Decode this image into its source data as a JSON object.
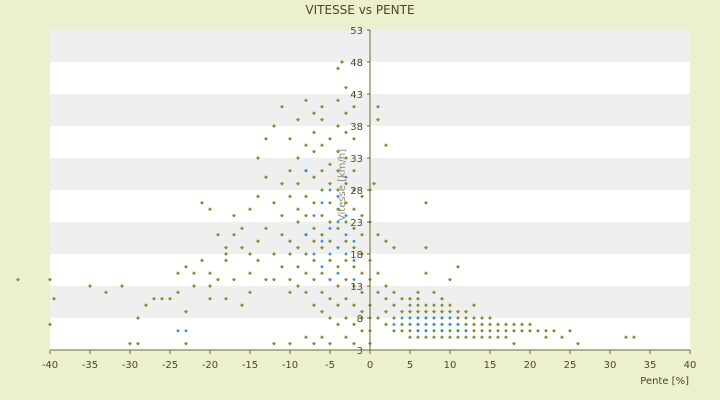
{
  "chart_data": {
    "type": "scatter",
    "title": "VITESSE vs PENTE",
    "xlabel": "Pente [%]",
    "ylabel": "Vitesse [km/h]",
    "xlim": [
      -40,
      40
    ],
    "ylim": [
      3,
      53
    ],
    "x_ticks": [
      "-40",
      "-35",
      "-30",
      "-25",
      "-20",
      "-15",
      "-10",
      "-5",
      "0",
      "5",
      "10",
      "15",
      "20",
      "25",
      "30",
      "35",
      "40"
    ],
    "y_ticks": [
      "3",
      "8",
      "13",
      "18",
      "23",
      "28",
      "33",
      "38",
      "43",
      "48",
      "53"
    ],
    "grid": "alternating horizontal bands",
    "colors": {
      "background": "#ecf0cf",
      "plot_band_light": "#ffffff",
      "plot_band_dark": "#efefef",
      "points_main": "#9a9a1a",
      "points_main_edge": "#4a5a10",
      "points_highlight": "#3a8fd8",
      "axis": "#6b6b2a"
    },
    "series": [
      {
        "color": "#8b9a1a",
        "points": [
          [
            -44,
            14
          ],
          [
            -40,
            14
          ],
          [
            -39.5,
            11
          ],
          [
            -40,
            7
          ],
          [
            -35,
            13
          ],
          [
            -33,
            12
          ],
          [
            -31,
            13
          ],
          [
            -30,
            4
          ],
          [
            -29,
            4
          ],
          [
            -29,
            8
          ],
          [
            -28,
            10
          ],
          [
            -27,
            11
          ],
          [
            -26,
            11
          ],
          [
            -25,
            11
          ],
          [
            -24,
            12
          ],
          [
            -24,
            15
          ],
          [
            -23,
            16
          ],
          [
            -23,
            9
          ],
          [
            -23,
            4
          ],
          [
            -22,
            13
          ],
          [
            -22,
            15
          ],
          [
            -21,
            17
          ],
          [
            -21,
            26
          ],
          [
            -20,
            15
          ],
          [
            -20,
            11
          ],
          [
            -20,
            13
          ],
          [
            -20,
            25
          ],
          [
            -19,
            21
          ],
          [
            -19,
            14
          ],
          [
            -18,
            17
          ],
          [
            -18,
            18
          ],
          [
            -18,
            19
          ],
          [
            -18,
            11
          ],
          [
            -17,
            14
          ],
          [
            -17,
            21
          ],
          [
            -17,
            24
          ],
          [
            -16,
            19
          ],
          [
            -16,
            22
          ],
          [
            -16,
            10
          ],
          [
            -15,
            18
          ],
          [
            -15,
            15
          ],
          [
            -15,
            12
          ],
          [
            -15,
            25
          ],
          [
            -14,
            17
          ],
          [
            -14,
            20
          ],
          [
            -14,
            27
          ],
          [
            -14,
            33
          ],
          [
            -13,
            14
          ],
          [
            -13,
            22
          ],
          [
            -13,
            36
          ],
          [
            -13,
            30
          ],
          [
            -12,
            18
          ],
          [
            -12,
            14
          ],
          [
            -12,
            26
          ],
          [
            -12,
            38
          ],
          [
            -12,
            4
          ],
          [
            -11,
            16
          ],
          [
            -11,
            21
          ],
          [
            -11,
            24
          ],
          [
            -11,
            29
          ],
          [
            -11,
            41
          ],
          [
            -10,
            14
          ],
          [
            -10,
            18
          ],
          [
            -10,
            20
          ],
          [
            -10,
            27
          ],
          [
            -10,
            31
          ],
          [
            -10,
            36
          ],
          [
            -10,
            12
          ],
          [
            -10,
            4
          ],
          [
            -9,
            13
          ],
          [
            -9,
            16
          ],
          [
            -9,
            19
          ],
          [
            -9,
            23
          ],
          [
            -9,
            25
          ],
          [
            -9,
            29
          ],
          [
            -9,
            33
          ],
          [
            -9,
            39
          ],
          [
            -8,
            12
          ],
          [
            -8,
            15
          ],
          [
            -8,
            18
          ],
          [
            -8,
            21
          ],
          [
            -8,
            24
          ],
          [
            -8,
            27
          ],
          [
            -8,
            31
          ],
          [
            -8,
            35
          ],
          [
            -8,
            42
          ],
          [
            -8,
            5
          ],
          [
            -7,
            10
          ],
          [
            -7,
            14
          ],
          [
            -7,
            17
          ],
          [
            -7,
            20
          ],
          [
            -7,
            22
          ],
          [
            -7,
            26
          ],
          [
            -7,
            30
          ],
          [
            -7,
            34
          ],
          [
            -7,
            37
          ],
          [
            -7,
            40
          ],
          [
            -7,
            4
          ],
          [
            -6,
            9
          ],
          [
            -6,
            12
          ],
          [
            -6,
            15
          ],
          [
            -6,
            19
          ],
          [
            -6,
            21
          ],
          [
            -6,
            24
          ],
          [
            -6,
            28
          ],
          [
            -6,
            31
          ],
          [
            -6,
            35
          ],
          [
            -6,
            39
          ],
          [
            -6,
            41
          ],
          [
            -6,
            5
          ],
          [
            -5,
            8
          ],
          [
            -5,
            11
          ],
          [
            -5,
            14
          ],
          [
            -5,
            17
          ],
          [
            -5,
            20
          ],
          [
            -5,
            23
          ],
          [
            -5,
            26
          ],
          [
            -5,
            29
          ],
          [
            -5,
            32
          ],
          [
            -5,
            36
          ],
          [
            -5,
            4
          ],
          [
            -4,
            7
          ],
          [
            -4,
            10
          ],
          [
            -4,
            13
          ],
          [
            -4,
            16
          ],
          [
            -4,
            19
          ],
          [
            -4,
            22
          ],
          [
            -4,
            25
          ],
          [
            -4,
            28
          ],
          [
            -4,
            31
          ],
          [
            -4,
            34
          ],
          [
            -4,
            38
          ],
          [
            -4,
            42
          ],
          [
            -4,
            47
          ],
          [
            -3.5,
            48
          ],
          [
            -3,
            8
          ],
          [
            -3,
            11
          ],
          [
            -3,
            14
          ],
          [
            -3,
            17
          ],
          [
            -3,
            20
          ],
          [
            -3,
            23
          ],
          [
            -3,
            26
          ],
          [
            -3,
            29
          ],
          [
            -3,
            33
          ],
          [
            -3,
            37
          ],
          [
            -3,
            40
          ],
          [
            -3,
            44
          ],
          [
            -3,
            5
          ],
          [
            -2,
            7
          ],
          [
            -2,
            10
          ],
          [
            -2,
            13
          ],
          [
            -2,
            16
          ],
          [
            -2,
            19
          ],
          [
            -2,
            22
          ],
          [
            -2,
            25
          ],
          [
            -2,
            28
          ],
          [
            -2,
            31
          ],
          [
            -2,
            36
          ],
          [
            -2,
            41
          ],
          [
            -2,
            4
          ],
          [
            -1,
            6
          ],
          [
            -1,
            9
          ],
          [
            -1,
            12
          ],
          [
            -1,
            15
          ],
          [
            -1,
            18
          ],
          [
            -1,
            21
          ],
          [
            -1,
            24
          ],
          [
            -1,
            27
          ],
          [
            -1,
            8
          ],
          [
            0,
            6
          ],
          [
            0,
            8
          ],
          [
            0,
            10
          ],
          [
            0,
            14
          ],
          [
            0,
            17
          ],
          [
            0,
            23
          ],
          [
            0,
            28
          ],
          [
            0,
            4
          ],
          [
            0.5,
            29
          ],
          [
            1,
            12
          ],
          [
            1,
            15
          ],
          [
            1,
            8
          ],
          [
            1,
            41
          ],
          [
            1,
            39
          ],
          [
            1,
            21
          ],
          [
            2,
            7
          ],
          [
            2,
            9
          ],
          [
            2,
            11
          ],
          [
            2,
            13
          ],
          [
            2,
            35
          ],
          [
            2,
            20
          ],
          [
            3,
            6
          ],
          [
            3,
            8
          ],
          [
            3,
            10
          ],
          [
            3,
            12
          ],
          [
            3,
            19
          ],
          [
            4,
            6
          ],
          [
            4,
            7
          ],
          [
            4,
            9
          ],
          [
            4,
            11
          ],
          [
            5,
            5
          ],
          [
            5,
            6
          ],
          [
            5,
            7
          ],
          [
            5,
            8
          ],
          [
            5,
            9
          ],
          [
            5,
            10
          ],
          [
            5,
            11
          ],
          [
            6,
            5
          ],
          [
            6,
            6
          ],
          [
            6,
            7
          ],
          [
            6,
            8
          ],
          [
            6,
            9
          ],
          [
            6,
            10
          ],
          [
            6,
            11
          ],
          [
            6,
            12
          ],
          [
            7,
            5
          ],
          [
            7,
            6
          ],
          [
            7,
            7
          ],
          [
            7,
            8
          ],
          [
            7,
            9
          ],
          [
            7,
            10
          ],
          [
            7,
            26
          ],
          [
            7,
            19
          ],
          [
            7,
            15
          ],
          [
            8,
            5
          ],
          [
            8,
            6
          ],
          [
            8,
            7
          ],
          [
            8,
            8
          ],
          [
            8,
            9
          ],
          [
            8,
            10
          ],
          [
            8,
            12
          ],
          [
            9,
            5
          ],
          [
            9,
            6
          ],
          [
            9,
            7
          ],
          [
            9,
            8
          ],
          [
            9,
            9
          ],
          [
            9,
            10
          ],
          [
            9,
            11
          ],
          [
            10,
            5
          ],
          [
            10,
            6
          ],
          [
            10,
            7
          ],
          [
            10,
            8
          ],
          [
            10,
            9
          ],
          [
            10,
            10
          ],
          [
            10,
            14
          ],
          [
            11,
            5
          ],
          [
            11,
            6
          ],
          [
            11,
            7
          ],
          [
            11,
            8
          ],
          [
            11,
            9
          ],
          [
            11,
            16
          ],
          [
            12,
            5
          ],
          [
            12,
            6
          ],
          [
            12,
            7
          ],
          [
            12,
            8
          ],
          [
            12,
            9
          ],
          [
            13,
            5
          ],
          [
            13,
            6
          ],
          [
            13,
            7
          ],
          [
            13,
            8
          ],
          [
            13,
            10
          ],
          [
            14,
            5
          ],
          [
            14,
            6
          ],
          [
            14,
            7
          ],
          [
            14,
            8
          ],
          [
            15,
            5
          ],
          [
            15,
            6
          ],
          [
            15,
            7
          ],
          [
            15,
            8
          ],
          [
            16,
            5
          ],
          [
            16,
            6
          ],
          [
            16,
            7
          ],
          [
            17,
            5
          ],
          [
            17,
            6
          ],
          [
            17,
            7
          ],
          [
            18,
            6
          ],
          [
            18,
            7
          ],
          [
            18,
            4
          ],
          [
            19,
            6
          ],
          [
            19,
            7
          ],
          [
            20,
            6
          ],
          [
            20,
            7
          ],
          [
            21,
            6
          ],
          [
            22,
            6
          ],
          [
            22,
            5
          ],
          [
            23,
            6
          ],
          [
            24,
            5
          ],
          [
            25,
            6
          ],
          [
            26,
            4
          ],
          [
            32,
            5
          ],
          [
            33,
            5
          ]
        ]
      },
      {
        "color": "#3a8fd8",
        "points": [
          [
            -24,
            6
          ],
          [
            -23,
            6
          ],
          [
            -8,
            21
          ],
          [
            -8,
            31
          ],
          [
            -7,
            24
          ],
          [
            -7,
            18
          ],
          [
            -6,
            26
          ],
          [
            -6,
            20
          ],
          [
            -6,
            16
          ],
          [
            -5,
            28
          ],
          [
            -5,
            22
          ],
          [
            -5,
            18
          ],
          [
            -5,
            14
          ],
          [
            -4,
            27
          ],
          [
            -4,
            23
          ],
          [
            -4,
            19
          ],
          [
            -4,
            15
          ],
          [
            -3,
            24
          ],
          [
            -3,
            21
          ],
          [
            -3,
            18
          ],
          [
            -3,
            30
          ],
          [
            -2,
            20
          ],
          [
            -2,
            17
          ],
          [
            -2,
            14
          ],
          [
            3,
            7
          ],
          [
            4,
            8
          ],
          [
            5,
            7
          ],
          [
            5,
            8
          ],
          [
            6,
            6
          ],
          [
            6,
            7
          ],
          [
            6,
            8
          ],
          [
            7,
            6
          ],
          [
            7,
            7
          ],
          [
            7,
            8
          ],
          [
            8,
            7
          ],
          [
            8,
            8
          ],
          [
            9,
            6
          ],
          [
            9,
            7
          ],
          [
            9,
            8
          ],
          [
            10,
            7
          ],
          [
            10,
            8
          ],
          [
            11,
            6
          ],
          [
            11,
            7
          ],
          [
            12,
            6
          ]
        ]
      }
    ]
  }
}
